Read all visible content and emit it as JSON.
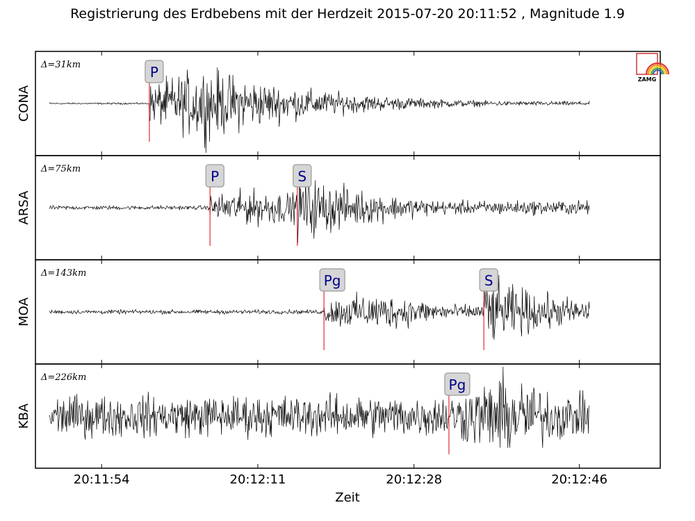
{
  "chart_data": {
    "type": "line",
    "title": "Registrierung des Erdbebens mit der Herdzeit 2015-07-20 20:11:52 , Magnitude 1.9",
    "xlabel": "Zeit",
    "xlim": [
      46.8,
      114.8
    ],
    "x_ticks": [
      {
        "value": 54,
        "label": "20:11:54"
      },
      {
        "value": 71,
        "label": "20:12:11"
      },
      {
        "value": 88,
        "label": "20:12:28"
      },
      {
        "value": 106,
        "label": "20:12:46"
      }
    ],
    "trace_time_range": [
      48.3,
      107.1
    ],
    "logo": {
      "text": "ZAMG",
      "border_color": "#cc3333"
    },
    "pick_color": "#e03030",
    "trace_color": "#000000",
    "stations": [
      {
        "name": "CONA",
        "distance": "Δ=31km",
        "noise_amplitude": 0.02,
        "peak_amplitude": 0.9,
        "picks": [
          {
            "phase": "P",
            "time": 59.2
          }
        ]
      },
      {
        "name": "ARSA",
        "distance": "Δ=75km",
        "noise_amplitude": 0.05,
        "peak_amplitude": 0.85,
        "picks": [
          {
            "phase": "P",
            "time": 65.8
          },
          {
            "phase": "S",
            "time": 75.3
          }
        ]
      },
      {
        "name": "MOA",
        "distance": "Δ=143km",
        "noise_amplitude": 0.05,
        "peak_amplitude": 0.85,
        "picks": [
          {
            "phase": "Pg",
            "time": 78.2
          },
          {
            "phase": "S",
            "time": 95.6
          }
        ]
      },
      {
        "name": "KBA",
        "distance": "Δ=226km",
        "noise_amplitude": 0.5,
        "peak_amplitude": 1.0,
        "picks": [
          {
            "phase": "Pg",
            "time": 91.8
          }
        ]
      }
    ]
  }
}
